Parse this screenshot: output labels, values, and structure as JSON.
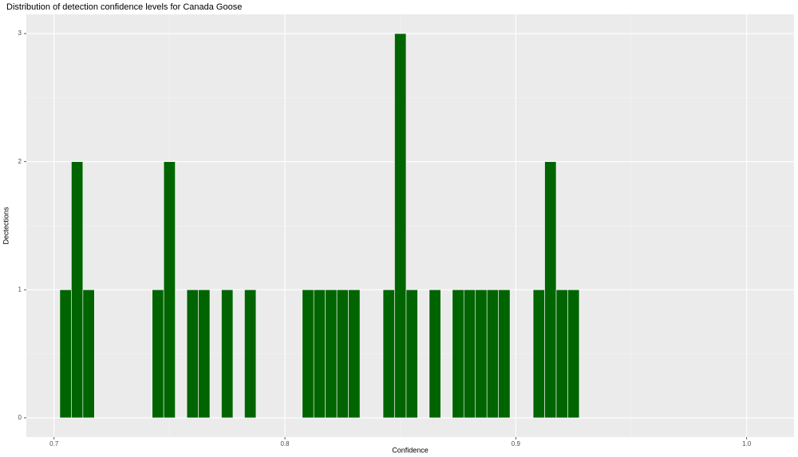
{
  "chart_data": {
    "type": "histogram",
    "title": "Distribution of detection confidence levels for Canada Goose",
    "x_label": "Confidence",
    "y_label": "Dectections",
    "bins": [
      0.7025,
      0.7075,
      0.7125,
      0.7175,
      0.7225,
      0.7275,
      0.7325,
      0.7375,
      0.7425,
      0.7475,
      0.7525,
      0.7575,
      0.7625,
      0.7675,
      0.7725,
      0.7775,
      0.7825,
      0.7875,
      0.7925,
      0.7975,
      0.8025,
      0.8075,
      0.8125,
      0.8175,
      0.8225,
      0.8275,
      0.8325,
      0.8375,
      0.8425,
      0.8475,
      0.8525,
      0.8575,
      0.8625,
      0.8675,
      0.8725,
      0.8775,
      0.8825,
      0.8875,
      0.8925,
      0.8975,
      0.9025,
      0.9075,
      0.9125,
      0.9175,
      0.9225,
      0.9275
    ],
    "values": [
      1,
      2,
      1,
      0,
      0,
      0,
      0,
      0,
      1,
      2,
      0,
      1,
      1,
      0,
      1,
      0,
      1,
      0,
      0,
      0,
      0,
      1,
      1,
      1,
      1,
      1,
      0,
      0,
      1,
      3,
      1,
      0,
      1,
      0,
      1,
      1,
      1,
      1,
      1,
      0,
      0,
      1,
      2,
      1,
      1
    ],
    "color": "#006400",
    "xlim": [
      0.688,
      1.0205
    ],
    "ylim": [
      -0.15,
      3.15
    ],
    "xticks": [
      0.7,
      0.8,
      0.9,
      {
        "value": 1.0,
        "label": "1.0"
      }
    ],
    "yticks": [
      0,
      1,
      2,
      3
    ],
    "grid": true
  }
}
